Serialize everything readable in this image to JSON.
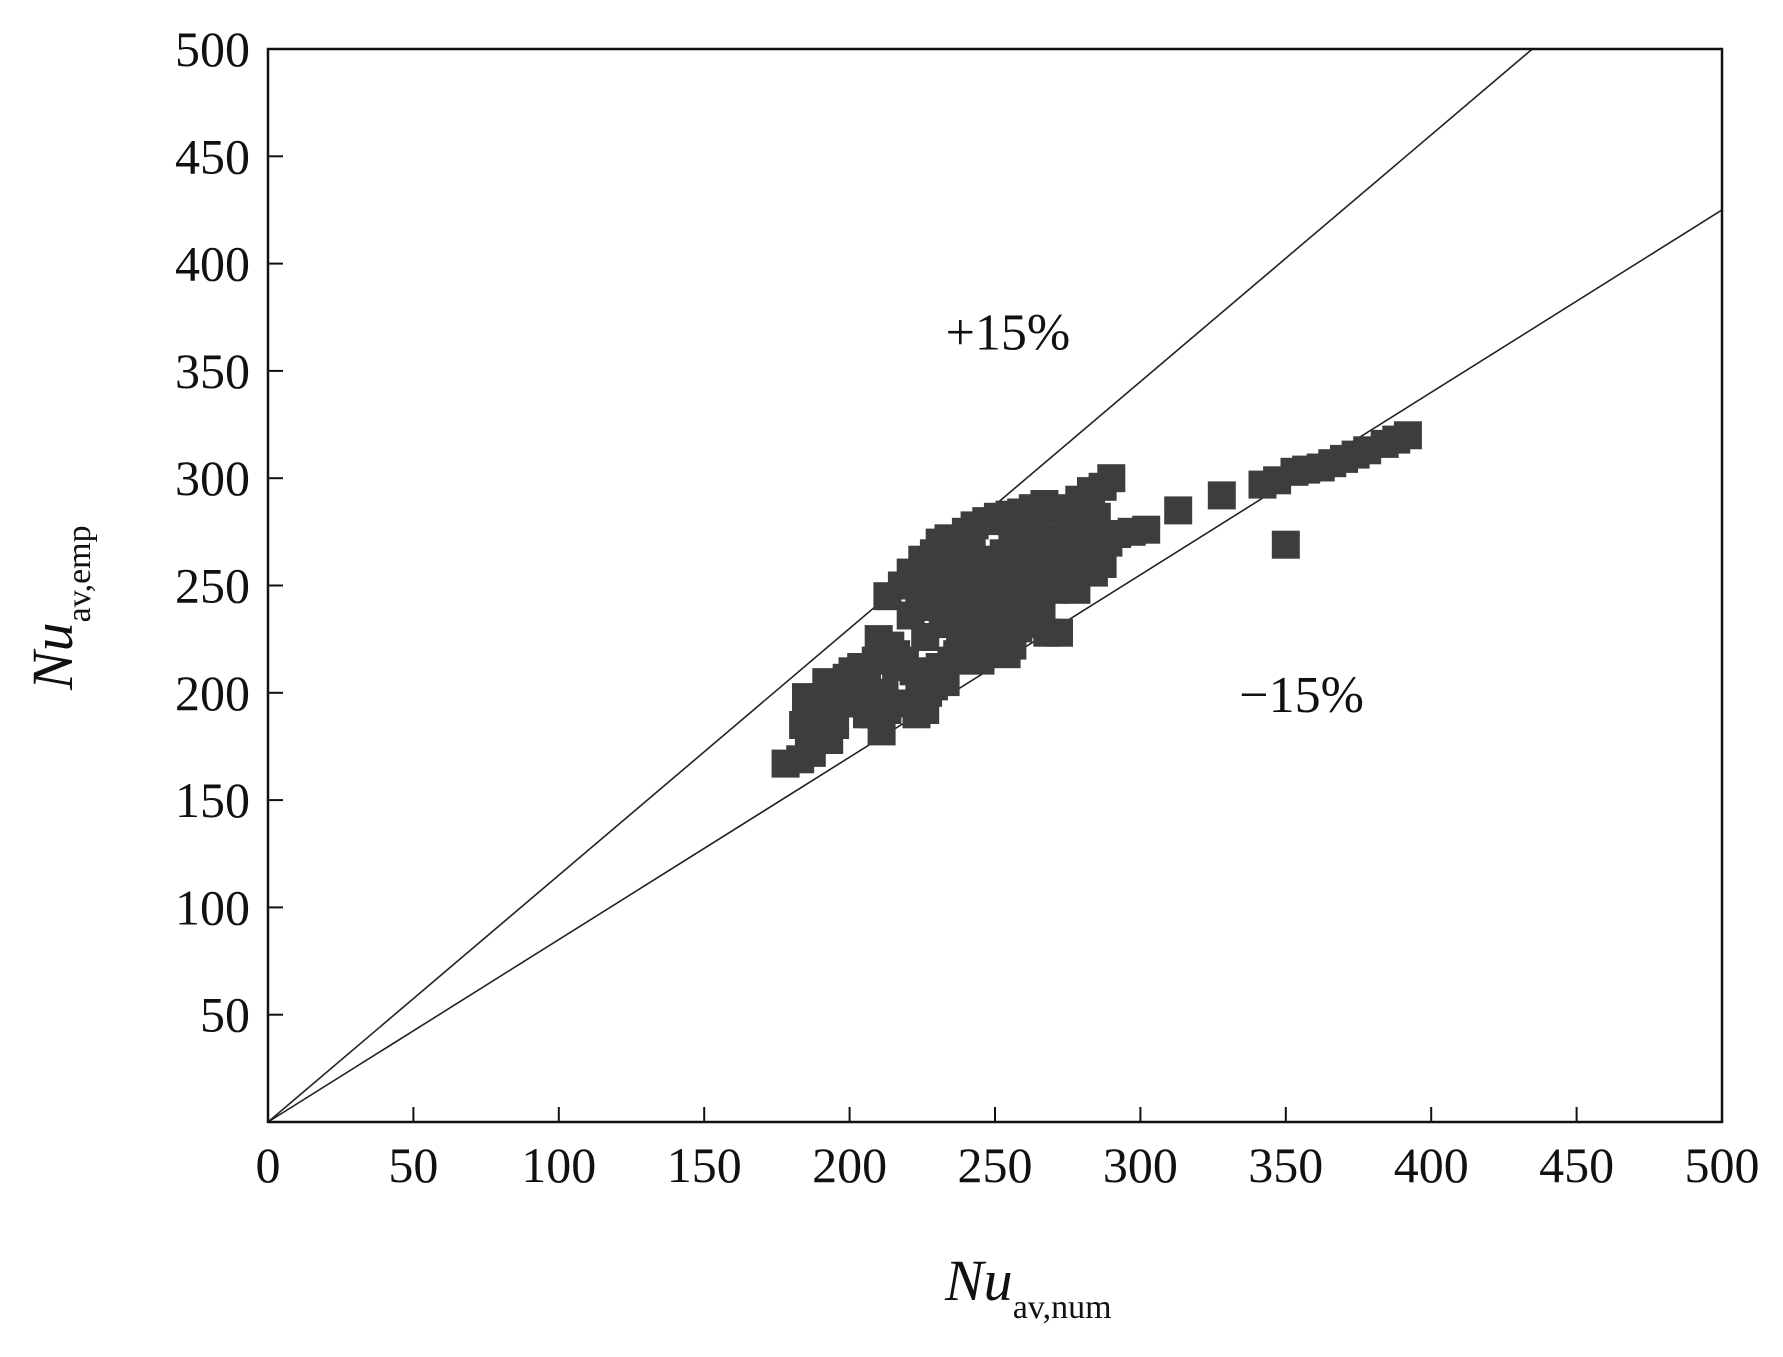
{
  "chart_data": {
    "type": "scatter",
    "title": "",
    "xlabel": {
      "main": "Nu",
      "sub": "av,num"
    },
    "ylabel": {
      "main": "Nu",
      "sub": "av,emp"
    },
    "xlim": [
      0,
      500
    ],
    "ylim": [
      0,
      500
    ],
    "x_ticks": [
      0,
      50,
      100,
      150,
      200,
      250,
      300,
      350,
      400,
      450,
      500
    ],
    "y_ticks": [
      50,
      100,
      150,
      200,
      250,
      300,
      350,
      400,
      450,
      500
    ],
    "grid": false,
    "colors": {
      "marker": "#3d3d3d",
      "line": "#222222",
      "axis": "#111111"
    },
    "reference_lines": [
      {
        "label": "+15%",
        "slope": 1.15,
        "label_at": [
          233,
          360
        ]
      },
      {
        "label": "−15%",
        "slope": 0.85,
        "label_at": [
          334,
          191
        ]
      }
    ],
    "series": [
      {
        "marker": "square",
        "points": [
          [
            178,
            167
          ],
          [
            183,
            169
          ],
          [
            187,
            172
          ],
          [
            186,
            178
          ],
          [
            188,
            182
          ],
          [
            184,
            185
          ],
          [
            187,
            190
          ],
          [
            188,
            194
          ],
          [
            185,
            198
          ],
          [
            190,
            196
          ],
          [
            194,
            197
          ],
          [
            198,
            198
          ],
          [
            200,
            200
          ],
          [
            195,
            185
          ],
          [
            193,
            178
          ],
          [
            192,
            205
          ],
          [
            199,
            207
          ],
          [
            201,
            210
          ],
          [
            204,
            212
          ],
          [
            206,
            205
          ],
          [
            203,
            195
          ],
          [
            206,
            190
          ],
          [
            208,
            190
          ],
          [
            213,
            192
          ],
          [
            211,
            182
          ],
          [
            212,
            200
          ],
          [
            209,
            215
          ],
          [
            210,
            225
          ],
          [
            214,
            222
          ],
          [
            216,
            218
          ],
          [
            216,
            212
          ],
          [
            219,
            215
          ],
          [
            222,
            210
          ],
          [
            224,
            205
          ],
          [
            223,
            190
          ],
          [
            219,
            195
          ],
          [
            226,
            192
          ],
          [
            227,
            200
          ],
          [
            229,
            203
          ],
          [
            233,
            205
          ],
          [
            231,
            212
          ],
          [
            235,
            215
          ],
          [
            237,
            218
          ],
          [
            240,
            215
          ],
          [
            245,
            215
          ],
          [
            243,
            222
          ],
          [
            248,
            223
          ],
          [
            252,
            225
          ],
          [
            256,
            222
          ],
          [
            258,
            230
          ],
          [
            262,
            232
          ],
          [
            266,
            235
          ],
          [
            268,
            228
          ],
          [
            272,
            228
          ],
          [
            254,
            218
          ],
          [
            244,
            232
          ],
          [
            240,
            238
          ],
          [
            236,
            242
          ],
          [
            233,
            246
          ],
          [
            228,
            250
          ],
          [
            224,
            244
          ],
          [
            221,
            236
          ],
          [
            226,
            226
          ],
          [
            232,
            232
          ],
          [
            238,
            225
          ],
          [
            218,
            250
          ],
          [
            213,
            245
          ],
          [
            221,
            256
          ],
          [
            225,
            262
          ],
          [
            229,
            265
          ],
          [
            231,
            270
          ],
          [
            234,
            272
          ],
          [
            238,
            268
          ],
          [
            240,
            275
          ],
          [
            243,
            278
          ],
          [
            247,
            280
          ],
          [
            251,
            282
          ],
          [
            255,
            283
          ],
          [
            259,
            284
          ],
          [
            263,
            286
          ],
          [
            267,
            288
          ],
          [
            272,
            285
          ],
          [
            275,
            286
          ],
          [
            279,
            290
          ],
          [
            283,
            294
          ],
          [
            287,
            296
          ],
          [
            290,
            300
          ],
          [
            282,
            278
          ],
          [
            285,
            282
          ],
          [
            286,
            268
          ],
          [
            289,
            270
          ],
          [
            292,
            274
          ],
          [
            297,
            275
          ],
          [
            302,
            276
          ],
          [
            279,
            265
          ],
          [
            276,
            258
          ],
          [
            271,
            262
          ],
          [
            269,
            255
          ],
          [
            264,
            250
          ],
          [
            260,
            252
          ],
          [
            257,
            244
          ],
          [
            253,
            246
          ],
          [
            250,
            240
          ],
          [
            247,
            236
          ],
          [
            245,
            250
          ],
          [
            249,
            260
          ],
          [
            253,
            265
          ],
          [
            256,
            270
          ],
          [
            260,
            274
          ],
          [
            264,
            276
          ],
          [
            268,
            272
          ],
          [
            272,
            270
          ],
          [
            276,
            275
          ],
          [
            280,
            272
          ],
          [
            284,
            262
          ],
          [
            265,
            262
          ],
          [
            261,
            262
          ],
          [
            257,
            258
          ],
          [
            253,
            255
          ],
          [
            249,
            252
          ],
          [
            246,
            262
          ],
          [
            242,
            258
          ],
          [
            239,
            252
          ],
          [
            236,
            258
          ],
          [
            232,
            255
          ],
          [
            229,
            248
          ],
          [
            227,
            240
          ],
          [
            233,
            238
          ],
          [
            239,
            244
          ],
          [
            243,
            245
          ],
          [
            247,
            245
          ],
          [
            251,
            256
          ],
          [
            255,
            262
          ],
          [
            259,
            265
          ],
          [
            262,
            268
          ],
          [
            266,
            266
          ],
          [
            271,
            256
          ],
          [
            275,
            250
          ],
          [
            278,
            248
          ],
          [
            242,
            268
          ],
          [
            238,
            262
          ],
          [
            235,
            265
          ],
          [
            228,
            258
          ],
          [
            244,
            240
          ],
          [
            250,
            234
          ],
          [
            254,
            236
          ],
          [
            258,
            240
          ],
          [
            262,
            242
          ],
          [
            266,
            245
          ],
          [
            270,
            248
          ],
          [
            274,
            252
          ],
          [
            277,
            255
          ],
          [
            281,
            257
          ],
          [
            284,
            256
          ],
          [
            287,
            260
          ],
          [
            313,
            285
          ],
          [
            328,
            292
          ],
          [
            342,
            297
          ],
          [
            347,
            299
          ],
          [
            350,
            269
          ],
          [
            353,
            303
          ],
          [
            357,
            304
          ],
          [
            362,
            305
          ],
          [
            366,
            307
          ],
          [
            370,
            309
          ],
          [
            374,
            311
          ],
          [
            378,
            313
          ],
          [
            384,
            316
          ],
          [
            388,
            318
          ],
          [
            392,
            320
          ]
        ]
      }
    ]
  }
}
